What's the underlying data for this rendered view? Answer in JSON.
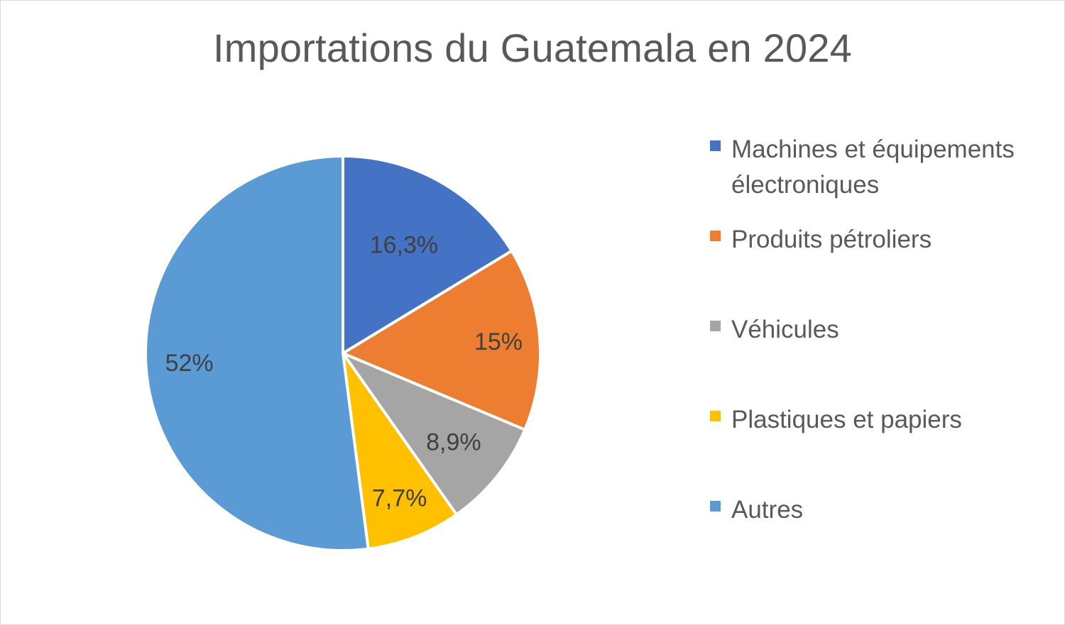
{
  "chart_data": {
    "type": "pie",
    "title": "Importations du Guatemala en 2024",
    "categories": [
      "Machines et équipements électroniques",
      "Produits pétroliers",
      "Véhicules",
      "Plastiques et papiers",
      "Autres"
    ],
    "values": [
      16.3,
      15,
      8.9,
      7.7,
      52
    ],
    "data_labels": [
      "16,3%",
      "15%",
      "8,9%",
      "7,7%",
      "52%"
    ],
    "colors": [
      "#4472c4",
      "#ed7d31",
      "#a5a5a5",
      "#ffc000",
      "#5b9bd5"
    ],
    "legend_position": "right"
  }
}
